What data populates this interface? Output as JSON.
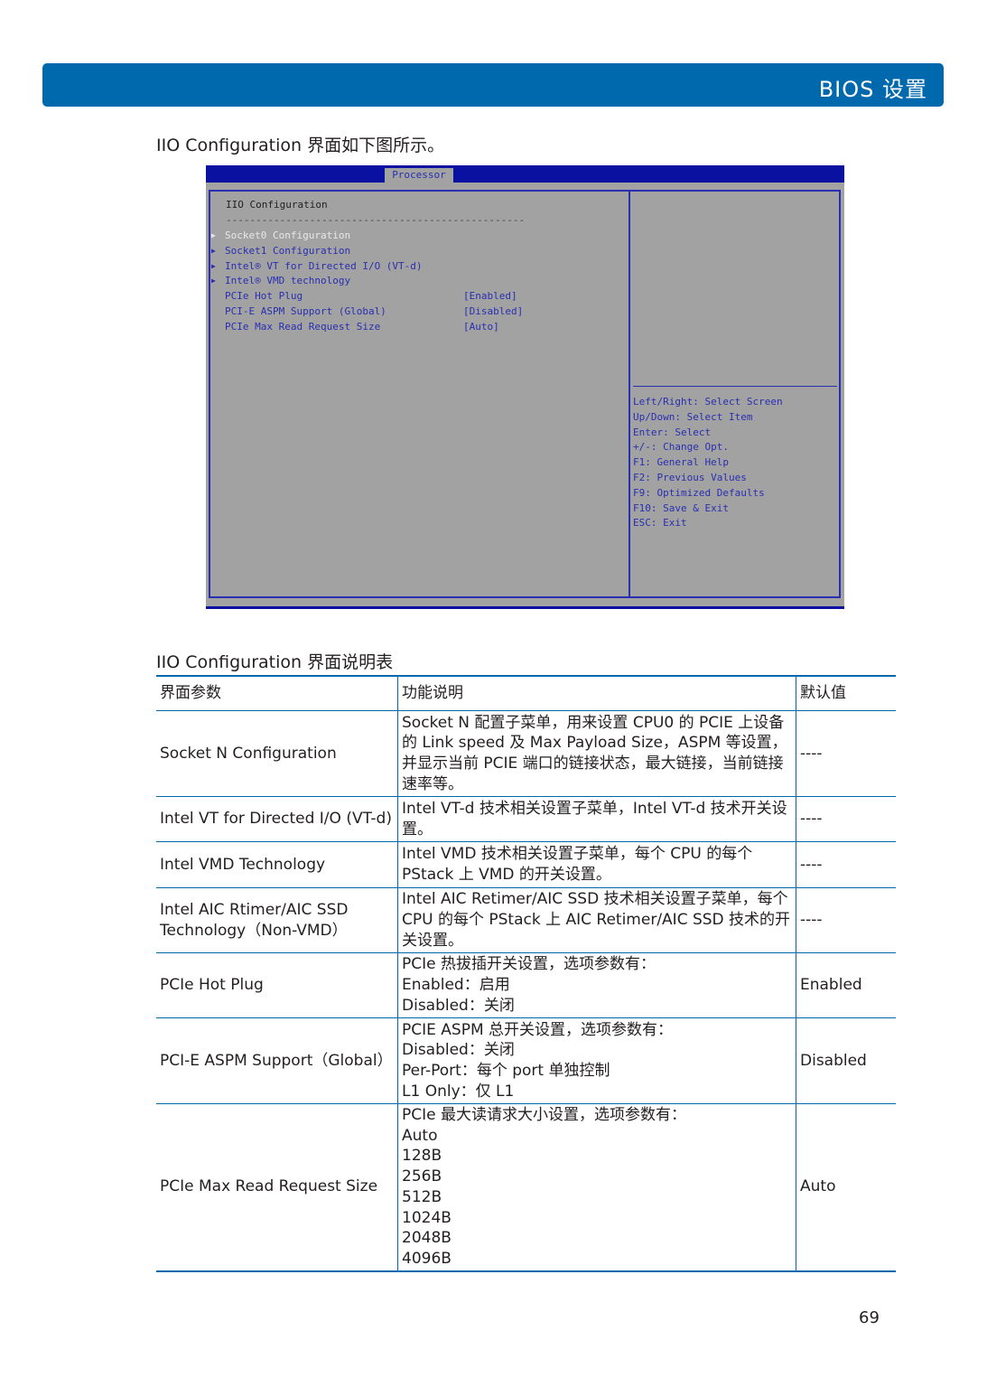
{
  "header": {
    "title": "BIOS 设置"
  },
  "intro": "IIO Configuration 界面如下图所示。",
  "bios": {
    "tab": "Processor",
    "title": "IIO Configuration",
    "separator": "--------------------------------------------------",
    "items": [
      {
        "label": "Socket0 Configuration",
        "submenu": true,
        "selected": true,
        "value": ""
      },
      {
        "label": "Socket1 Configuration",
        "submenu": true,
        "value": ""
      },
      {
        "label": "Intel® VT for Directed I/O (VT-d)",
        "submenu": true,
        "value": ""
      },
      {
        "label": "Intel® VMD technology",
        "submenu": true,
        "value": ""
      },
      {
        "label": "PCIe Hot Plug",
        "value": "[Enabled]"
      },
      {
        "label": "PCI-E ASPM Support (Global)",
        "value": "[Disabled]"
      },
      {
        "label": "PCIe Max Read Request Size",
        "value": "[Auto]"
      }
    ],
    "help": [
      "Left/Right: Select Screen",
      "Up/Down: Select Item",
      "Enter: Select",
      "+/-: Change Opt.",
      "F1: General Help",
      "F2: Previous Values",
      "F9: Optimized Defaults",
      "F10: Save & Exit",
      "ESC: Exit"
    ]
  },
  "table": {
    "caption": "IIO Configuration 界面说明表",
    "headers": [
      "界面参数",
      "功能说明",
      "默认值"
    ],
    "rows": [
      {
        "param": "Socket N Configuration",
        "desc": [
          "Socket N 配置子菜单，用来设置 CPU0 的 PCIE 上设备的 Link speed 及 Max Payload Size，ASPM 等设置，并显示当前 PCIE 端口的链接状态，最大链接，当前链接速率等。"
        ],
        "default": "----"
      },
      {
        "param": "Intel VT for Directed I/O (VT-d)",
        "desc": [
          "Intel VT-d 技术相关设置子菜单，Intel VT-d 技术开关设置。"
        ],
        "default": "----"
      },
      {
        "param": "Intel VMD Technology",
        "desc": [
          "Intel VMD 技术相关设置子菜单，每个 CPU 的每个 PStack 上 VMD 的开关设置。"
        ],
        "default": "----"
      },
      {
        "param": "Intel AIC Rtimer/AIC SSD Technology（Non-VMD）",
        "desc": [
          "Intel AIC Retimer/AIC SSD 技术相关设置子菜单，每个 CPU 的每个 PStack 上 AIC Retimer/AIC SSD 技术的开关设置。"
        ],
        "default": "----"
      },
      {
        "param": "PCIe Hot Plug",
        "desc": [
          "PCIe 热拔插开关设置，选项参数有：",
          "Enabled：启用",
          "Disabled：关闭"
        ],
        "default": "Enabled"
      },
      {
        "param": "PCI-E ASPM Support（Global）",
        "desc": [
          "PCIE ASPM 总开关设置，选项参数有：",
          "Disabled：关闭",
          "Per-Port：每个 port 单独控制",
          "L1 Only：仅 L1"
        ],
        "default": "Disabled"
      },
      {
        "param": "PCIe Max Read Request Size",
        "desc": [
          "PCIe 最大读请求大小设置，选项参数有：",
          "Auto",
          "128B",
          "256B",
          "512B",
          "1024B",
          "2048B",
          "4096B"
        ],
        "default": "Auto"
      }
    ]
  },
  "page_number": "69"
}
